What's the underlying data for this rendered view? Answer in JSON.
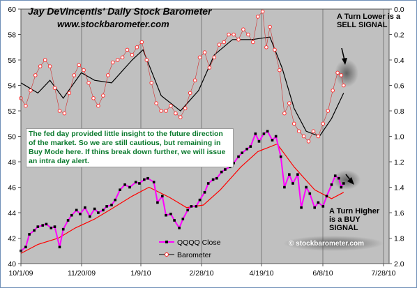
{
  "header": {
    "title": "Jay DeVincentis' Daily Stock Barometer",
    "website": "www.stockbarometer.com"
  },
  "annotations": {
    "sell": "A Turn Lower is a SELL  SIGNAL",
    "buy": "A Turn Higher is a BUY SIGNAL",
    "commentary": "The fed day provided little insight to the future direction of the market.  So we are still cautious, but remaining in Buy Mode here.  If thins break down further, we will issue an intra day alert.",
    "watermark": "© stockbarometer.com"
  },
  "colors": {
    "plot_background": "#c0c0c0",
    "qqqq_close": "#ff00ff",
    "qqqq_points": "#000000",
    "qqqq_ma": "#ff0000",
    "barometer_line": "#000000",
    "barometer_points": "#ff3030",
    "commentary_text": "#0b7a2e"
  },
  "chart_data": {
    "type": "line",
    "x_ticks": [
      "10/1/09",
      "11/20/09",
      "1/9/10",
      "2/28/10",
      "4/19/10",
      "6/8/10",
      "7/28/10"
    ],
    "y_left": {
      "min": 40,
      "max": 60,
      "ticks": [
        "40",
        "42",
        "44",
        "46",
        "48",
        "50",
        "52",
        "54",
        "56",
        "58",
        "60"
      ]
    },
    "y_right": {
      "min": 0,
      "max": 2,
      "inverted": true,
      "ticks": [
        "0.0",
        "0.2",
        "0.4",
        "0.6",
        "0.8",
        "1.0",
        "1.2",
        "1.4",
        "1.6",
        "1.8",
        "2.0"
      ]
    },
    "grid": "vertical",
    "legend": {
      "position": "bottom-center",
      "entries": [
        "QQQQ Close",
        "Barometer"
      ]
    },
    "series": [
      {
        "name": "QQQQ Close",
        "axis": "left",
        "points": [
          [
            "2009-10-01",
            41.0
          ],
          [
            "2009-10-05",
            41.3
          ],
          [
            "2009-10-08",
            42.3
          ],
          [
            "2009-10-12",
            42.6
          ],
          [
            "2009-10-15",
            42.9
          ],
          [
            "2009-10-19",
            43.0
          ],
          [
            "2009-10-22",
            43.1
          ],
          [
            "2009-10-26",
            42.8
          ],
          [
            "2009-10-29",
            42.9
          ],
          [
            "2009-11-02",
            41.3
          ],
          [
            "2009-11-05",
            42.7
          ],
          [
            "2009-11-09",
            43.4
          ],
          [
            "2009-11-12",
            43.8
          ],
          [
            "2009-11-16",
            44.2
          ],
          [
            "2009-11-19",
            43.9
          ],
          [
            "2009-11-23",
            44.4
          ],
          [
            "2009-11-27",
            43.7
          ],
          [
            "2009-12-01",
            44.3
          ],
          [
            "2009-12-04",
            44.0
          ],
          [
            "2009-12-08",
            44.2
          ],
          [
            "2009-12-11",
            44.5
          ],
          [
            "2009-12-15",
            44.6
          ],
          [
            "2009-12-18",
            45.0
          ],
          [
            "2009-12-22",
            45.8
          ],
          [
            "2009-12-26",
            46.2
          ],
          [
            "2009-12-30",
            46.0
          ],
          [
            "2010-01-04",
            46.4
          ],
          [
            "2010-01-07",
            46.3
          ],
          [
            "2010-01-11",
            46.6
          ],
          [
            "2010-01-14",
            46.7
          ],
          [
            "2010-01-19",
            46.4
          ],
          [
            "2010-01-22",
            44.8
          ],
          [
            "2010-01-26",
            45.3
          ],
          [
            "2010-01-29",
            43.8
          ],
          [
            "2010-02-02",
            43.9
          ],
          [
            "2010-02-05",
            43.4
          ],
          [
            "2010-02-09",
            42.8
          ],
          [
            "2010-02-12",
            43.5
          ],
          [
            "2010-02-16",
            44.2
          ],
          [
            "2010-02-19",
            44.5
          ],
          [
            "2010-02-23",
            44.5
          ],
          [
            "2010-02-26",
            45.0
          ],
          [
            "2010-03-02",
            45.6
          ],
          [
            "2010-03-05",
            46.3
          ],
          [
            "2010-03-09",
            46.6
          ],
          [
            "2010-03-12",
            46.7
          ],
          [
            "2010-03-16",
            47.2
          ],
          [
            "2010-03-19",
            47.4
          ],
          [
            "2010-03-23",
            47.6
          ],
          [
            "2010-03-26",
            47.9
          ],
          [
            "2010-03-30",
            48.4
          ],
          [
            "2010-04-02",
            48.7
          ],
          [
            "2010-04-06",
            49.0
          ],
          [
            "2010-04-09",
            49.2
          ],
          [
            "2010-04-13",
            50.2
          ],
          [
            "2010-04-16",
            49.6
          ],
          [
            "2010-04-20",
            50.2
          ],
          [
            "2010-04-23",
            50.4
          ],
          [
            "2010-04-27",
            49.7
          ],
          [
            "2010-04-30",
            50.0
          ],
          [
            "2010-05-04",
            48.4
          ],
          [
            "2010-05-07",
            46.0
          ],
          [
            "2010-05-11",
            47.0
          ],
          [
            "2010-05-14",
            46.3
          ],
          [
            "2010-05-18",
            47.0
          ],
          [
            "2010-05-21",
            44.4
          ],
          [
            "2010-05-25",
            46.0
          ],
          [
            "2010-05-28",
            45.5
          ],
          [
            "2010-06-01",
            44.4
          ],
          [
            "2010-06-04",
            44.8
          ],
          [
            "2010-06-08",
            44.5
          ],
          [
            "2010-06-11",
            45.3
          ],
          [
            "2010-06-15",
            46.2
          ],
          [
            "2010-06-18",
            46.9
          ],
          [
            "2010-06-21",
            46.7
          ],
          [
            "2010-06-23",
            46.0
          ],
          [
            "2010-06-25",
            46.3
          ]
        ]
      },
      {
        "name": "",
        "axis": "left",
        "points": [
          [
            "2009-10-01",
            40.8
          ],
          [
            "2009-10-15",
            41.5
          ],
          [
            "2009-11-01",
            42.0
          ],
          [
            "2009-11-15",
            42.8
          ],
          [
            "2009-12-01",
            43.5
          ],
          [
            "2009-12-15",
            44.3
          ],
          [
            "2010-01-01",
            45.3
          ],
          [
            "2010-01-15",
            46.0
          ],
          [
            "2010-02-01",
            45.2
          ],
          [
            "2010-02-15",
            44.4
          ],
          [
            "2010-03-01",
            44.6
          ],
          [
            "2010-03-15",
            45.8
          ],
          [
            "2010-04-01",
            47.6
          ],
          [
            "2010-04-15",
            48.8
          ],
          [
            "2010-05-01",
            49.4
          ],
          [
            "2010-05-15",
            47.6
          ],
          [
            "2010-06-01",
            45.8
          ],
          [
            "2010-06-15",
            45.1
          ],
          [
            "2010-06-25",
            45.6
          ]
        ]
      },
      {
        "name": "Barometer",
        "axis": "right",
        "points": [
          [
            "2009-10-01",
            0.7
          ],
          [
            "2009-10-05",
            0.76
          ],
          [
            "2009-10-09",
            0.64
          ],
          [
            "2009-10-13",
            0.52
          ],
          [
            "2009-10-17",
            0.45
          ],
          [
            "2009-10-21",
            0.4
          ],
          [
            "2009-10-25",
            0.45
          ],
          [
            "2009-10-29",
            0.62
          ],
          [
            "2009-11-02",
            0.8
          ],
          [
            "2009-11-06",
            0.82
          ],
          [
            "2009-11-10",
            0.66
          ],
          [
            "2009-11-14",
            0.52
          ],
          [
            "2009-11-18",
            0.44
          ],
          [
            "2009-11-22",
            0.48
          ],
          [
            "2009-11-26",
            0.58
          ],
          [
            "2009-11-30",
            0.7
          ],
          [
            "2009-12-04",
            0.76
          ],
          [
            "2009-12-08",
            0.68
          ],
          [
            "2009-12-12",
            0.52
          ],
          [
            "2009-12-16",
            0.42
          ],
          [
            "2009-12-20",
            0.4
          ],
          [
            "2009-12-24",
            0.38
          ],
          [
            "2009-12-28",
            0.32
          ],
          [
            "2010-01-01",
            0.36
          ],
          [
            "2010-01-05",
            0.3
          ],
          [
            "2010-01-09",
            0.26
          ],
          [
            "2010-01-13",
            0.4
          ],
          [
            "2010-01-17",
            0.58
          ],
          [
            "2010-01-21",
            0.74
          ],
          [
            "2010-01-25",
            0.8
          ],
          [
            "2010-01-29",
            0.8
          ],
          [
            "2010-02-02",
            0.76
          ],
          [
            "2010-02-06",
            0.82
          ],
          [
            "2010-02-10",
            0.85
          ],
          [
            "2010-02-14",
            0.78
          ],
          [
            "2010-02-18",
            0.66
          ],
          [
            "2010-02-22",
            0.56
          ],
          [
            "2010-02-26",
            0.38
          ],
          [
            "2010-03-02",
            0.34
          ],
          [
            "2010-03-06",
            0.46
          ],
          [
            "2010-03-10",
            0.38
          ],
          [
            "2010-03-14",
            0.28
          ],
          [
            "2010-03-18",
            0.26
          ],
          [
            "2010-03-22",
            0.2
          ],
          [
            "2010-03-26",
            0.2
          ],
          [
            "2010-03-30",
            0.24
          ],
          [
            "2010-04-03",
            0.16
          ],
          [
            "2010-04-07",
            0.2
          ],
          [
            "2010-04-11",
            0.26
          ],
          [
            "2010-04-15",
            0.06
          ],
          [
            "2010-04-19",
            0.02
          ],
          [
            "2010-04-22",
            0.3
          ],
          [
            "2010-04-25",
            0.14
          ],
          [
            "2010-04-29",
            0.32
          ],
          [
            "2010-05-03",
            0.48
          ],
          [
            "2010-05-07",
            0.82
          ],
          [
            "2010-05-11",
            0.74
          ],
          [
            "2010-05-15",
            0.9
          ],
          [
            "2010-05-19",
            0.96
          ],
          [
            "2010-05-23",
            1.0
          ],
          [
            "2010-05-27",
            1.04
          ],
          [
            "2010-05-31",
            0.96
          ],
          [
            "2010-06-04",
            1.0
          ],
          [
            "2010-06-08",
            0.9
          ],
          [
            "2010-06-12",
            0.8
          ],
          [
            "2010-06-16",
            0.64
          ],
          [
            "2010-06-20",
            0.5
          ],
          [
            "2010-06-23",
            0.52
          ],
          [
            "2010-06-25",
            0.6
          ]
        ]
      },
      {
        "name": "",
        "axis": "right",
        "points": [
          [
            "2009-10-01",
            0.58
          ],
          [
            "2009-10-15",
            0.66
          ],
          [
            "2009-10-25",
            0.56
          ],
          [
            "2009-11-05",
            0.7
          ],
          [
            "2009-11-20",
            0.5
          ],
          [
            "2009-12-01",
            0.56
          ],
          [
            "2009-12-15",
            0.58
          ],
          [
            "2010-01-01",
            0.4
          ],
          [
            "2010-01-10",
            0.32
          ],
          [
            "2010-01-25",
            0.68
          ],
          [
            "2010-02-10",
            0.8
          ],
          [
            "2010-02-25",
            0.64
          ],
          [
            "2010-03-10",
            0.36
          ],
          [
            "2010-03-25",
            0.24
          ],
          [
            "2010-04-10",
            0.24
          ],
          [
            "2010-04-25",
            0.22
          ],
          [
            "2010-05-05",
            0.46
          ],
          [
            "2010-05-15",
            0.78
          ],
          [
            "2010-05-25",
            0.96
          ],
          [
            "2010-06-05",
            1.0
          ],
          [
            "2010-06-15",
            0.86
          ],
          [
            "2010-06-25",
            0.66
          ]
        ]
      }
    ]
  }
}
